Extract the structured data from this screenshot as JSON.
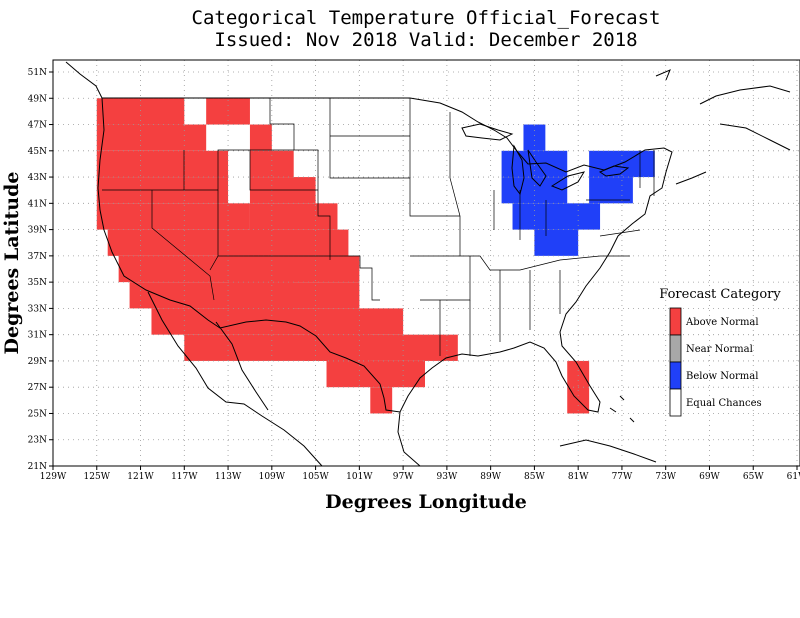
{
  "title": {
    "line1": "Categorical Temperature Official_Forecast",
    "line2": "Issued: Nov 2018 Valid: December 2018"
  },
  "axes": {
    "xlabel": "Degrees Longitude",
    "ylabel": "Degrees Latitude",
    "lon_range": [
      -129,
      -61
    ],
    "lat_range": [
      21,
      52
    ],
    "lon_ticks": [
      "129W",
      "125W",
      "121W",
      "117W",
      "113W",
      "109W",
      "105W",
      "101W",
      "97W",
      "93W",
      "89W",
      "85W",
      "81W",
      "77W",
      "73W",
      "69W",
      "65W",
      "61W"
    ],
    "lat_ticks": [
      "21N",
      "23N",
      "25N",
      "27N",
      "29N",
      "31N",
      "33N",
      "35N",
      "37N",
      "39N",
      "41N",
      "43N",
      "45N",
      "47N",
      "49N",
      "51N"
    ],
    "grid": "dotted"
  },
  "legend": {
    "title": "Forecast Category",
    "placement": "right",
    "items": [
      {
        "label": "Above Normal",
        "color": "#f44040"
      },
      {
        "label": "Near Normal",
        "color": "#a8a8a8"
      },
      {
        "label": "Below Normal",
        "color": "#2040f8"
      },
      {
        "label": "Equal Chances",
        "color": "#ffffff"
      }
    ]
  },
  "regions": {
    "above_normal": [
      [
        -125,
        49,
        -117,
        47
      ],
      [
        -125,
        47,
        -115,
        45
      ],
      [
        -125,
        45,
        -113,
        43
      ],
      [
        -125,
        43,
        -113,
        41
      ],
      [
        -125,
        41,
        -111,
        39
      ],
      [
        -124,
        39,
        -109,
        37
      ],
      [
        -123,
        37,
        -109,
        35
      ],
      [
        -122,
        35,
        -107,
        33
      ],
      [
        -120,
        33,
        -107,
        31
      ],
      [
        -117,
        31,
        -100,
        29
      ],
      [
        -111,
        47,
        -109,
        45
      ],
      [
        -111,
        45,
        -107,
        43
      ],
      [
        -111,
        43,
        -105,
        41
      ],
      [
        -111,
        41,
        -103,
        39
      ],
      [
        -111,
        39,
        -102,
        37
      ],
      [
        -113,
        37,
        -101,
        35
      ],
      [
        -113,
        35,
        -101,
        33
      ],
      [
        -113,
        33,
        -97,
        31
      ],
      [
        -106,
        31,
        -92,
        29
      ],
      [
        -104,
        29,
        -95,
        27
      ],
      [
        -100,
        27,
        -98,
        25
      ],
      [
        -115,
        49,
        -111,
        47
      ],
      [
        -82,
        29,
        -80,
        25
      ]
    ],
    "below_normal": [
      [
        -86,
        47,
        -84,
        45
      ],
      [
        -88,
        45,
        -82,
        43
      ],
      [
        -88,
        43,
        -82,
        41
      ],
      [
        -87,
        41,
        -79,
        39
      ],
      [
        -85,
        39,
        -81,
        37
      ],
      [
        -80,
        45,
        -74,
        43
      ],
      [
        -80,
        43,
        -76,
        41
      ]
    ]
  }
}
